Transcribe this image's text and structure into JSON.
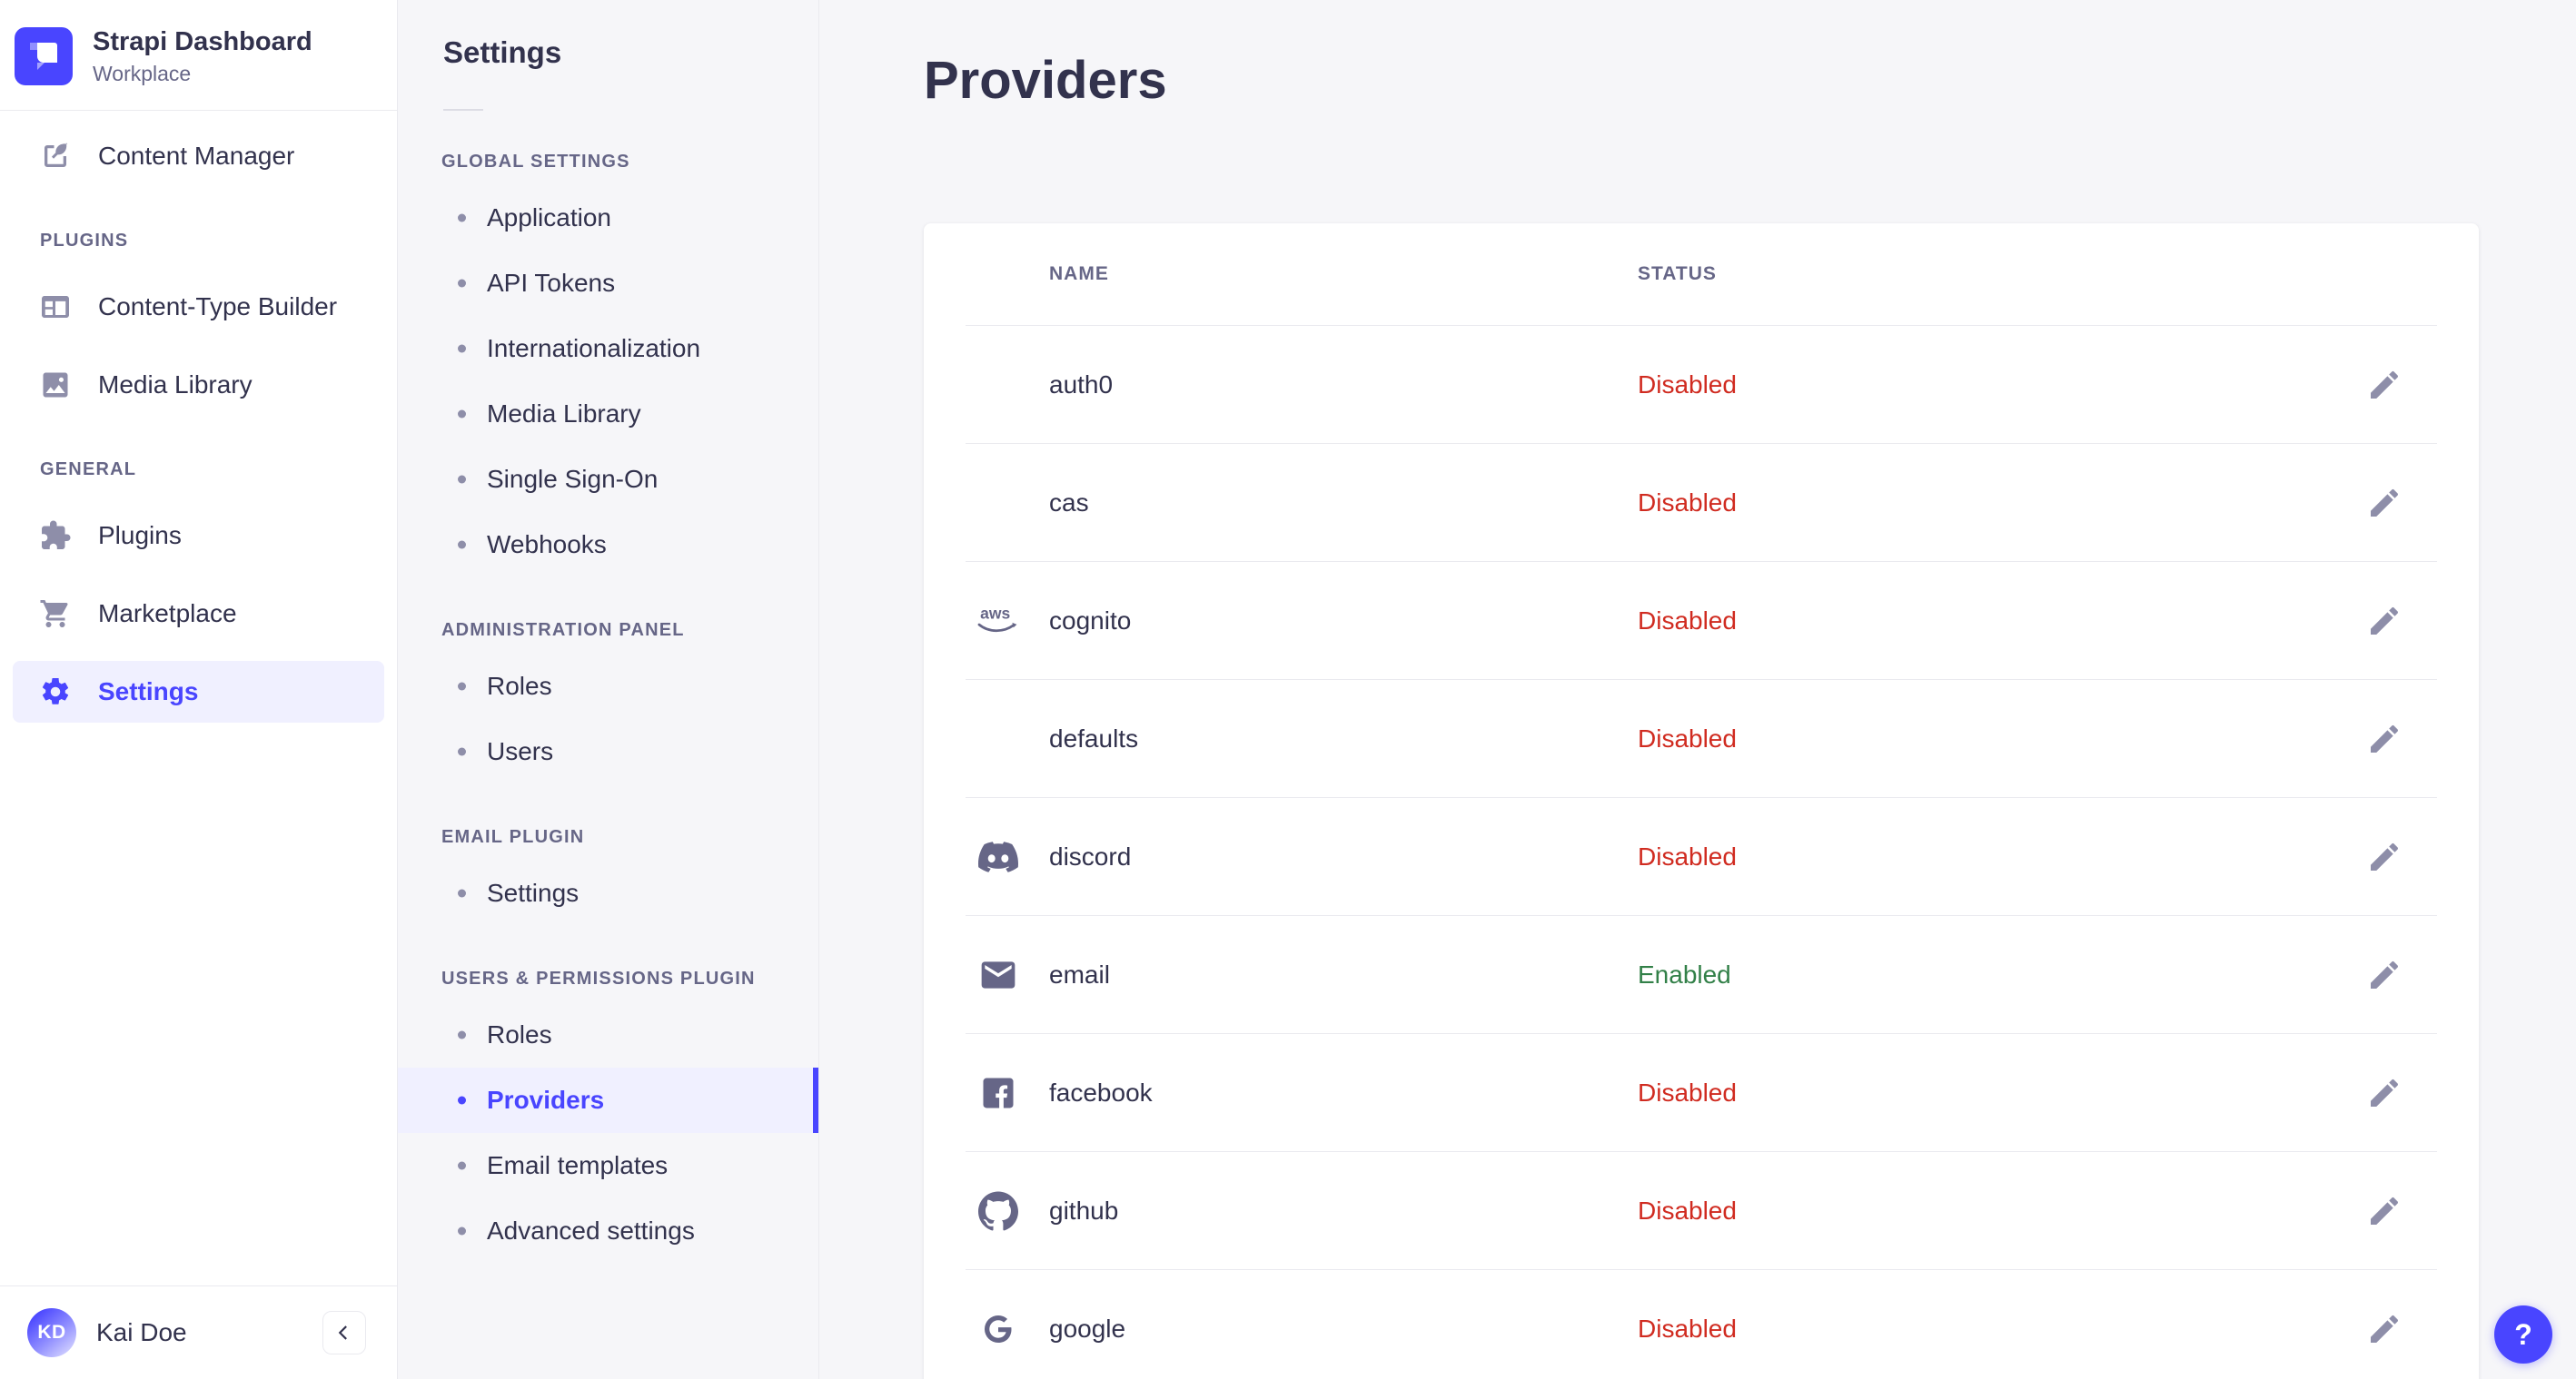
{
  "colors": {
    "accent": "#4945ff",
    "accent-bg": "#f0f0ff",
    "text": "#32324d",
    "text-muted": "#666687",
    "border": "#eaeaef",
    "bg": "#f6f6f9",
    "surface": "#ffffff",
    "status-enabled": "#328048",
    "status-disabled": "#d02b20"
  },
  "sidebar": {
    "brand": {
      "title": "Strapi Dashboard",
      "subtitle": "Workplace",
      "logo_icon": "strapi-logo-icon"
    },
    "primary": [
      {
        "label": "Content Manager",
        "icon": "content-manager-icon",
        "active": false
      }
    ],
    "sections": [
      {
        "label": "PLUGINS",
        "items": [
          {
            "label": "Content-Type Builder",
            "icon": "content-type-builder-icon",
            "active": false
          },
          {
            "label": "Media Library",
            "icon": "media-library-icon",
            "active": false
          }
        ]
      },
      {
        "label": "GENERAL",
        "items": [
          {
            "label": "Plugins",
            "icon": "plugins-icon",
            "active": false
          },
          {
            "label": "Marketplace",
            "icon": "marketplace-icon",
            "active": false
          },
          {
            "label": "Settings",
            "icon": "settings-icon",
            "active": true
          }
        ]
      }
    ],
    "user": {
      "initials": "KD",
      "name": "Kai Doe"
    },
    "collapse_icon": "chevron-left-icon"
  },
  "subnav": {
    "title": "Settings",
    "sections": [
      {
        "label": "GLOBAL SETTINGS",
        "items": [
          {
            "label": "Application",
            "active": false
          },
          {
            "label": "API Tokens",
            "active": false
          },
          {
            "label": "Internationalization",
            "active": false
          },
          {
            "label": "Media Library",
            "active": false
          },
          {
            "label": "Single Sign-On",
            "active": false
          },
          {
            "label": "Webhooks",
            "active": false
          }
        ]
      },
      {
        "label": "ADMINISTRATION PANEL",
        "items": [
          {
            "label": "Roles",
            "active": false
          },
          {
            "label": "Users",
            "active": false
          }
        ]
      },
      {
        "label": "EMAIL PLUGIN",
        "items": [
          {
            "label": "Settings",
            "active": false
          }
        ]
      },
      {
        "label": "USERS & PERMISSIONS PLUGIN",
        "items": [
          {
            "label": "Roles",
            "active": false
          },
          {
            "label": "Providers",
            "active": true
          },
          {
            "label": "Email templates",
            "active": false
          },
          {
            "label": "Advanced settings",
            "active": false
          }
        ]
      }
    ]
  },
  "main": {
    "title": "Providers",
    "table": {
      "columns": [
        "Name",
        "Status"
      ],
      "edit_icon": "pencil-icon",
      "rows": [
        {
          "name": "auth0",
          "icon": null,
          "status": "Disabled"
        },
        {
          "name": "cas",
          "icon": null,
          "status": "Disabled"
        },
        {
          "name": "cognito",
          "icon": "aws-icon",
          "status": "Disabled"
        },
        {
          "name": "defaults",
          "icon": null,
          "status": "Disabled"
        },
        {
          "name": "discord",
          "icon": "discord-icon",
          "status": "Disabled"
        },
        {
          "name": "email",
          "icon": "email-icon",
          "status": "Enabled"
        },
        {
          "name": "facebook",
          "icon": "facebook-icon",
          "status": "Disabled"
        },
        {
          "name": "github",
          "icon": "github-icon",
          "status": "Disabled"
        },
        {
          "name": "google",
          "icon": "google-icon",
          "status": "Disabled"
        }
      ]
    }
  },
  "help": {
    "label": "?",
    "icon": "question-icon"
  }
}
